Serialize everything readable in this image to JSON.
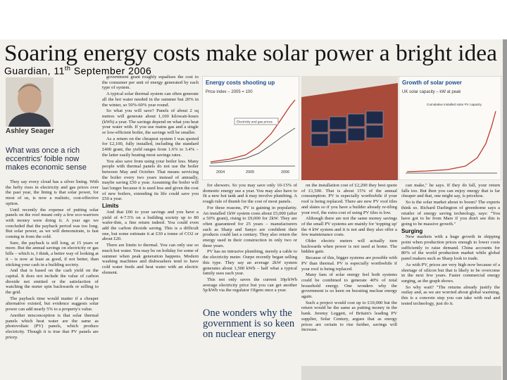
{
  "header": {
    "headline": "Soaring energy costs make solar power a bright idea",
    "caption": {
      "source": "Guardian, 11",
      "suffix": "th",
      "date": "September 2006"
    },
    "byline": "Ashley Seager",
    "standfirst": "What was once a rich eccentrics' foible now makes economic sense"
  },
  "figures": [
    {
      "title": "Energy costs shooting up",
      "subtitle": "Price index – 2005 = 100",
      "legend": "Electricity and gas prices",
      "x_labels": [
        "2004",
        "2005",
        "2006"
      ]
    },
    {
      "title": "Growth of solar power",
      "subtitle": "UK solar capacity – kW at peak",
      "legend": "Cumulative installed solar PV capacity"
    }
  ],
  "pull_quote": "One wonders why the government is so keen on nuclear energy",
  "columns": [
    [
      {
        "text": "They say every cloud has a silver lining. With the hefty rises in electricity and gas prices over the past year, the lining is that solar power, for most of us, is now a realistic, cost-effective option."
      },
      {
        "text": "Until recently the expense of putting solar panels on the roof meant only a few eco-warriors with money were doing it. A year ago we concluded that the payback period was too long. But solar power, as we will demonstrate, is fast coming in from the cold."
      },
      {
        "text": "Sure, the payback is still long, at 15 years or more. But the annual savings on electricity or gas bills – which is, I think, a better way of looking at it – is now at least as good, if not better, than sticking your cash in a building society."
      },
      {
        "text": "And that is based on the cash yield on the capital. It does not include the value of carbon dioxide not emitted or the satisfaction of watching the meter spin backwards or selling to the grid."
      },
      {
        "text": "The payback time would matter if a cheaper alternative existed, but evidence suggests solar power can add nearly 5% to a property's value."
      },
      {
        "text": "Another misconception is that solar thermal panels which heat water are the same as photovoltaic (PV) panels, which produce electricity. Though it is true that PV panels are pricey."
      }
    ],
    [
      {
        "text": "government grant roughly equalises the cost to the consumer per unit of energy generated by each type of system."
      },
      {
        "text": "A typical solar thermal system can often generate all the hot water needed in the summer but 20% in the winter, so 50%-60% year round."
      },
      {
        "text": "So what you will save? Panels of about 2 sq metres will generate about 1,100 kilowatt-hours (kWh) a year. The savings depend on what you heat your water with. If you use mains gas and a single or low-efficient boiler, the savings will be smaller."
      },
      {
        "text": "As a return on the cheapest system I was quoted for £2,100, fully installed, including the standard £400 grant, the yield ranges from 1.6% to 3.4% – the latter easily beating most savings rates."
      },
      {
        "text": "You also save from using your boiler less. Many people with thermal panels do not use the boiler between May and October. That means servicing the boiler every two years instead of annually, maybe saving £50 a year. Assuming the boiler will last longer because it is used less and given the cost of new boilers, extending its life could save you £50 a year."
      },
      {
        "heading": "Limits"
      },
      {
        "text": "And that £00 to your savings and you have a yield of 4-7.5% on a building society up to 80 wafer-thin, a fine return indeed. You could even add the carbon dioxide saving. This is a difficult one, but some estimate it at £30 a tonne of CO2 or about £20."
      },
      {
        "text": "There are limits to thermal. You can only use so much hot water. You may be on holiday for some of summer when peak generation happens. Modern washing machines and dishwashers tend to have cold water feeds and heat water with an electric element."
      }
    ],
    [
      {
        "text": "for showers. So you may save only 10-15% of domestic energy use a year. You may also have to fit a new hot tank and it may involve plumbing. A rough rule of thumb for the cost of most panels."
      },
      {
        "text": "For these reasons, PV is gaining in popularity. An installed 1kW system costs about £5,000 (after a 50% grant), rising to £9,000 for 2kW. They are often guaranteed for 25 years – manufacturers such as Sharp and Sanyo are confident their products could last a century. They also return the energy used in their construction in only two or three years."
      },
      {
        "text": "PV has no intrusive plumbing, merely a cable to the electricity meter. Ourpe recently began selling this type. They say an average 2kW system generates about 1,500 kWh – half what a typical family uses each year."
      },
      {
        "text": "This not only saves the current 10p/kWh average electricity price but you can get another 5p/kWh via the regulator Ofgem once a year."
      }
    ],
    [
      {
        "text": "on the installation cost of £2,200 they best quote of £1,500. That is about 15% of the annual consumption. PV is especially worthwhile if your roof is being replaced. There are new PV roof tiles and slates so if you have a builder already re-tiling your roof, the extra cost of using PV tiles is low."
      },
      {
        "text": "Although there are not the same money savings of the small PV systems are mainly for 'topping up' the 4 kW system and it is not and they also offer a few maintenance costs."
      },
      {
        "text": "Older electric meters will actually turn backwards when power is not used at home. The hidden gain."
      },
      {
        "text": "Because of this, bigger systems are possible with PV than thermal. PV is especially worthwhile if your roof is being replaced."
      },
      {
        "text": "Many fans of solar energy feel both systems could be combined to generate 40% of total household energy. One wonders why the government is so keen on boosting nuclear energy again."
      },
      {
        "text": "Such a project would cost up to £10,000 but the return would be the same as putting money in the bank. Jeremy Leggett, of Britain's leading PV supplier, Solar Century, argues that as energy prices are certain to rise further, savings will increase."
      }
    ],
    [
      {
        "text": "can make,\" he says. If they do fall, your return falls too. But then you can enjoy energy that is far cheaper and that, one might say, is priceless."
      },
      {
        "text": "So is the solar market about to boom? The experts think so. Richard Darlington of greenhome says a retailer of energy saving technology, says: \"You have got to be from Mars if you don't see this is going to be massive growth.\""
      },
      {
        "heading": "Surging"
      },
      {
        "text": "New markets with a huge growth in shipping point when production prices enough to lower costs sufficiently to raise demand. China accounts for 80% of the world production market while global panel makers such as Sharp look to trade."
      },
      {
        "text": "As with PV, prices are very high now because of a shortage of silicon but that is likely to be overcome in the next few years. Faster commercial energy surging, as the graph shows."
      },
      {
        "text": "So why wait? \"The returns already justify the outlay and, as we are worried about global warming, this is a concrete step you can take with real and tested technology, just do it."
      }
    ]
  ]
}
